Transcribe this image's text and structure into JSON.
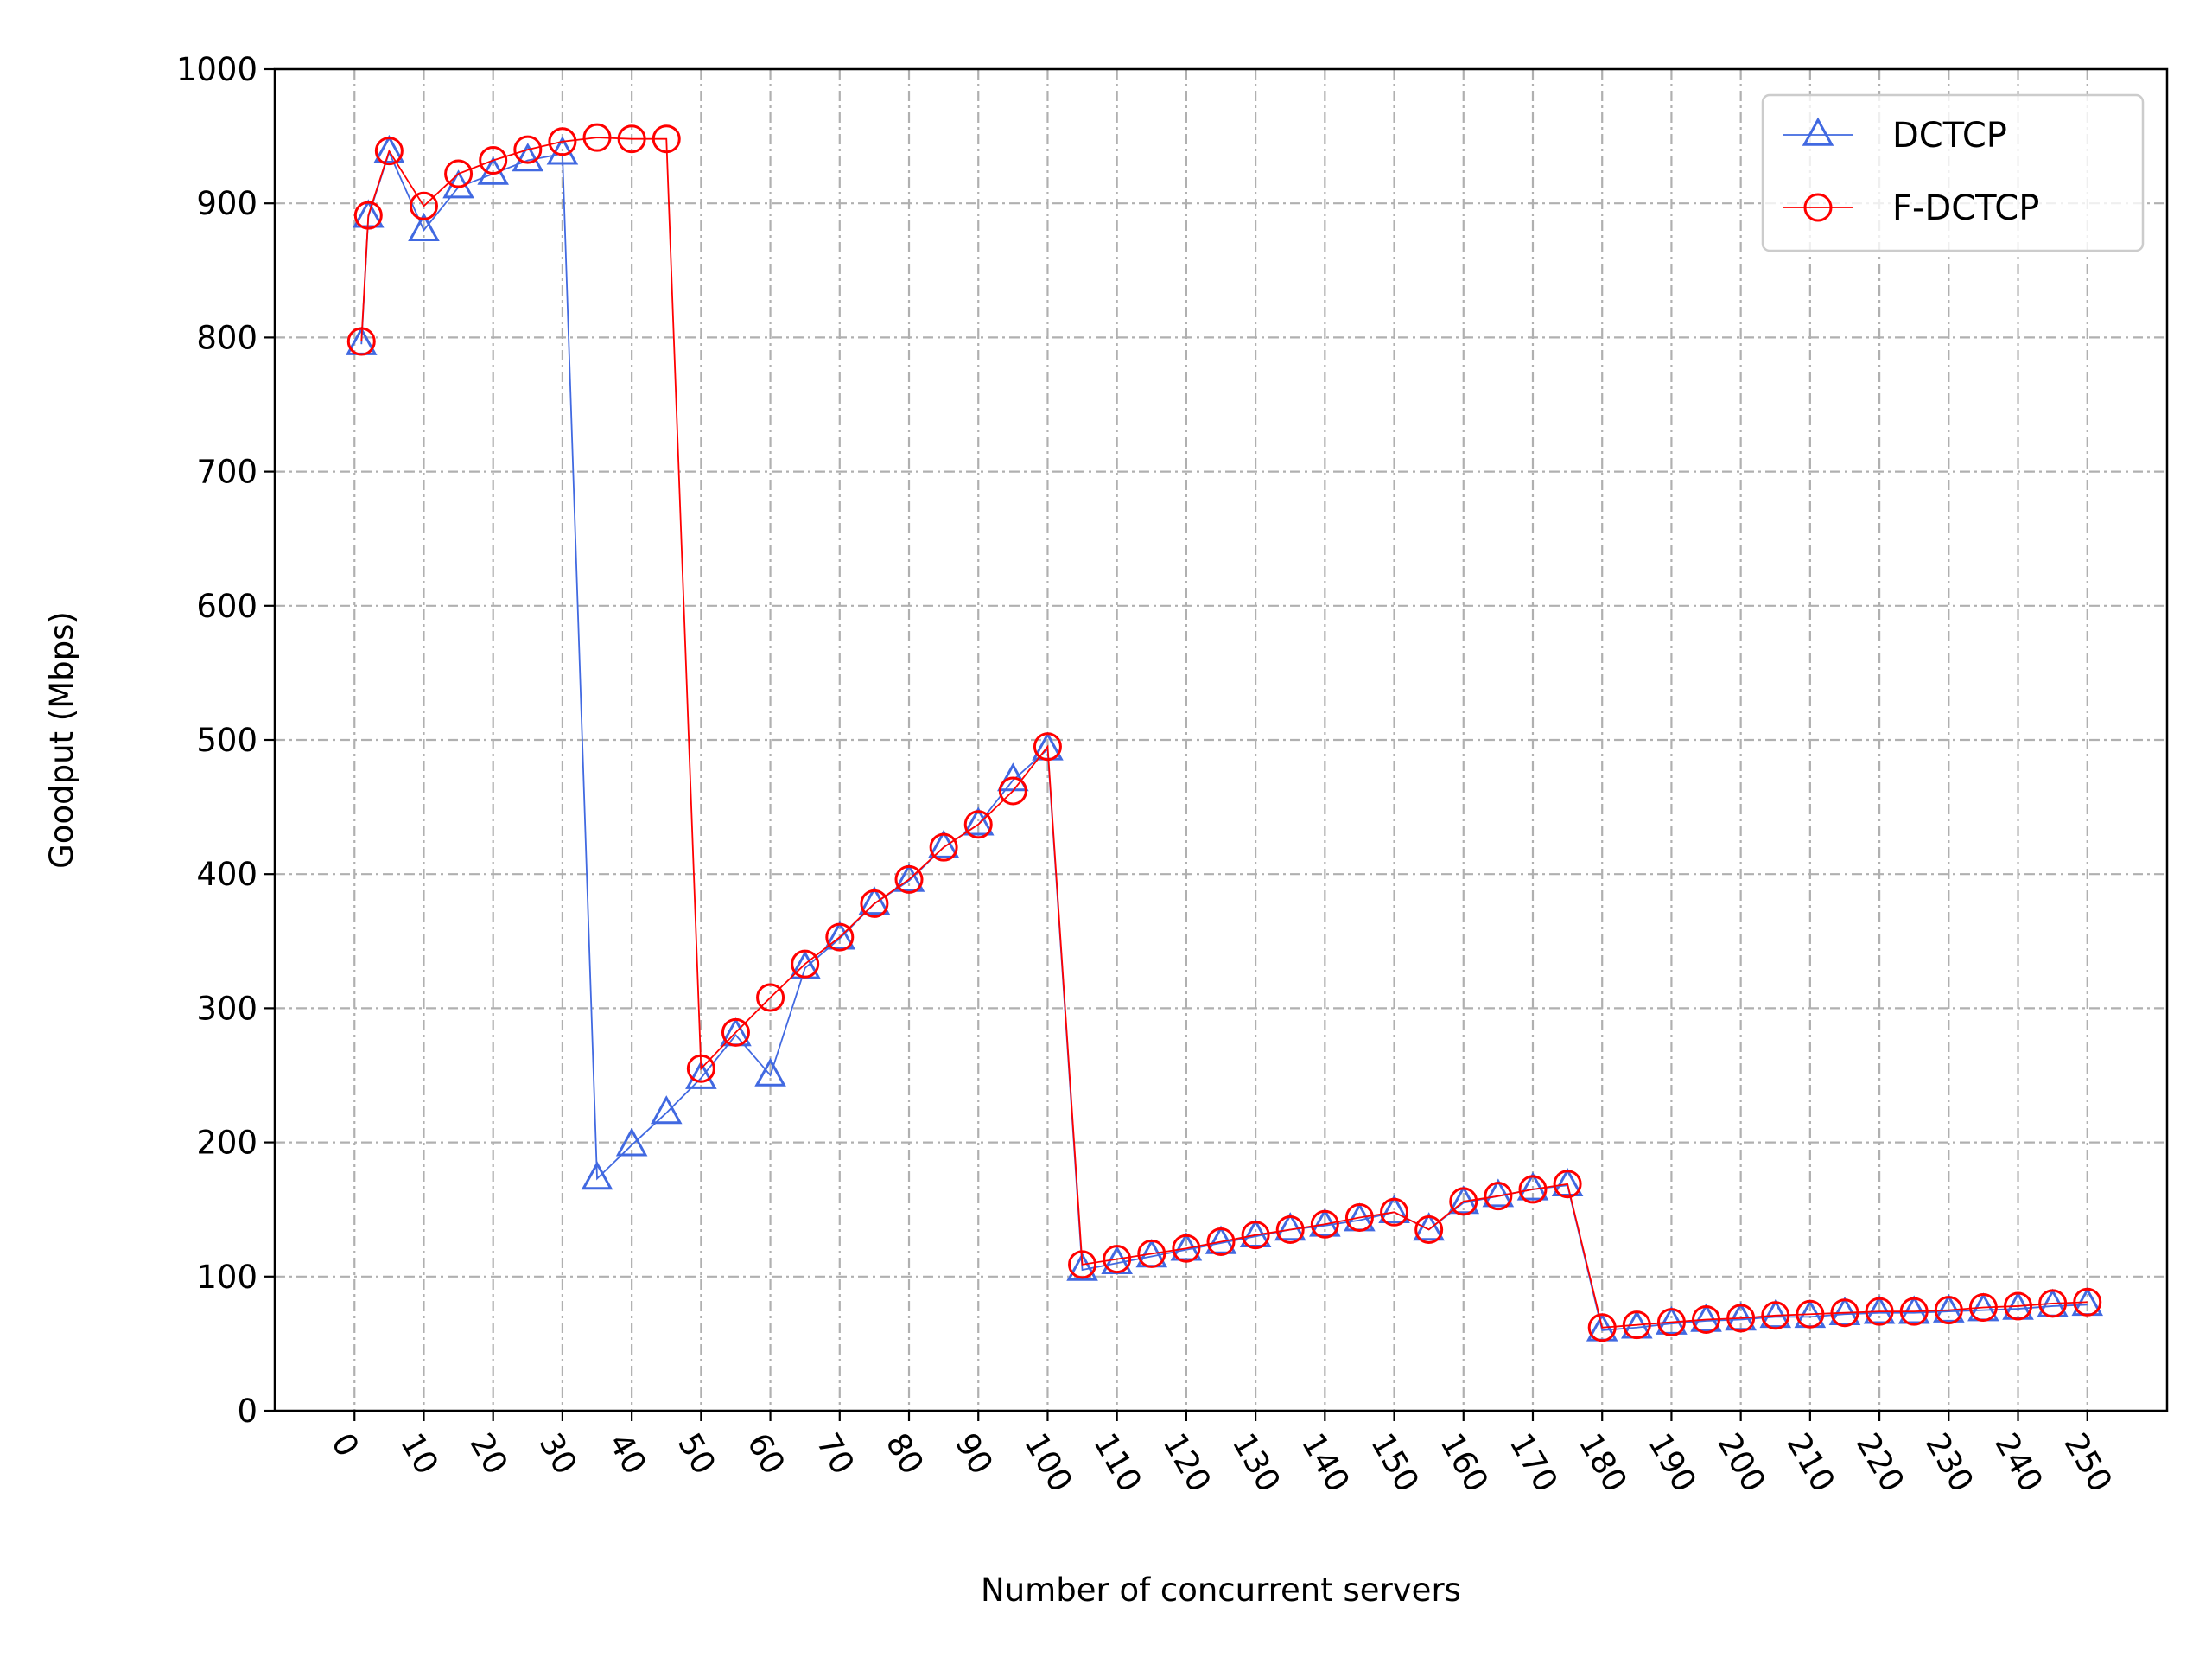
{
  "chart_data": {
    "type": "line",
    "title": "",
    "xlabel": "Number of concurrent servers",
    "ylabel": "Goodput (Mbps)",
    "xlim": [
      -11.5,
      261.5
    ],
    "ylim": [
      0,
      1000
    ],
    "xticks": [
      0,
      10,
      20,
      30,
      40,
      50,
      60,
      70,
      80,
      90,
      100,
      110,
      120,
      130,
      140,
      150,
      160,
      170,
      180,
      190,
      200,
      210,
      220,
      230,
      240,
      250
    ],
    "yticks": [
      0,
      100,
      200,
      300,
      400,
      500,
      600,
      700,
      800,
      900,
      1000
    ],
    "grid": true,
    "legend_position": "top-right",
    "series": [
      {
        "name": "DCTCP",
        "color": "#4169e1",
        "marker": "triangle-up-hollow",
        "x": [
          1,
          2,
          5,
          10,
          15,
          20,
          25,
          30,
          35,
          40,
          45,
          50,
          55,
          60,
          65,
          70,
          75,
          80,
          85,
          90,
          95,
          100,
          105,
          110,
          115,
          120,
          125,
          130,
          135,
          140,
          145,
          150,
          155,
          160,
          165,
          170,
          175,
          180,
          185,
          190,
          195,
          200,
          205,
          210,
          215,
          220,
          225,
          230,
          235,
          240,
          245,
          250
        ],
        "values": [
          795,
          890,
          938,
          880,
          912,
          922,
          932,
          937,
          173,
          198,
          222,
          248,
          280,
          250,
          330,
          352,
          378,
          395,
          420,
          437,
          470,
          493,
          105,
          110,
          115,
          120,
          125,
          130,
          135,
          138,
          142,
          148,
          135,
          155,
          160,
          165,
          168,
          60,
          62,
          65,
          67,
          68,
          70,
          70,
          72,
          73,
          73,
          74,
          75,
          76,
          78,
          79
        ]
      },
      {
        "name": "F-DCTCP",
        "color": "#ff0000",
        "marker": "circle-hollow",
        "x": [
          1,
          2,
          5,
          10,
          15,
          20,
          25,
          30,
          35,
          40,
          45,
          50,
          55,
          60,
          65,
          70,
          75,
          80,
          85,
          90,
          95,
          100,
          105,
          110,
          115,
          120,
          125,
          130,
          135,
          140,
          145,
          150,
          155,
          160,
          165,
          170,
          175,
          180,
          185,
          190,
          195,
          200,
          205,
          210,
          215,
          220,
          225,
          230,
          235,
          240,
          245,
          250
        ],
        "values": [
          797,
          891,
          939,
          898,
          922,
          932,
          940,
          946,
          949,
          948,
          948,
          255,
          282,
          308,
          333,
          353,
          378,
          396,
          420,
          437,
          462,
          495,
          109,
          113,
          117,
          121,
          126,
          131,
          135,
          139,
          144,
          148,
          135,
          156,
          160,
          165,
          169,
          62,
          64,
          66,
          68,
          69,
          71,
          72,
          73,
          74,
          74,
          75,
          77,
          78,
          80,
          81
        ]
      }
    ]
  }
}
